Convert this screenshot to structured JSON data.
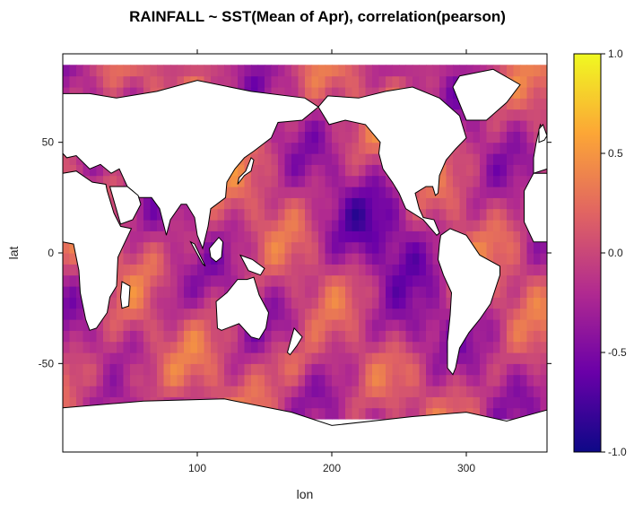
{
  "chart_data": {
    "type": "heatmap",
    "title": "RAINFALL ~ SST(Mean of Apr), correlation(pearson)",
    "xlabel": "lon",
    "ylabel": "lat",
    "xlim": [
      0,
      360
    ],
    "ylim": [
      -90,
      90
    ],
    "x_ticks": [
      100,
      200,
      300
    ],
    "x_tick_labels": [
      "100",
      "200",
      "300"
    ],
    "y_ticks": [
      50,
      0,
      -50
    ],
    "y_tick_labels": [
      "50",
      "0",
      "-50"
    ],
    "colorbar": {
      "range": [
        -1.0,
        1.0
      ],
      "ticks": [
        1.0,
        0.5,
        0.0,
        -0.5,
        -1.0
      ],
      "tick_labels": [
        "1.0",
        "0.5",
        "0.0",
        "-0.5",
        "-1.0"
      ],
      "colors": [
        "#0d0887",
        "#6a00a8",
        "#b12a90",
        "#e16462",
        "#fca636",
        "#f0f921"
      ]
    },
    "land_color": "#ffffff",
    "coastline_color": "#000000",
    "grid": false,
    "legend_position": "right"
  }
}
